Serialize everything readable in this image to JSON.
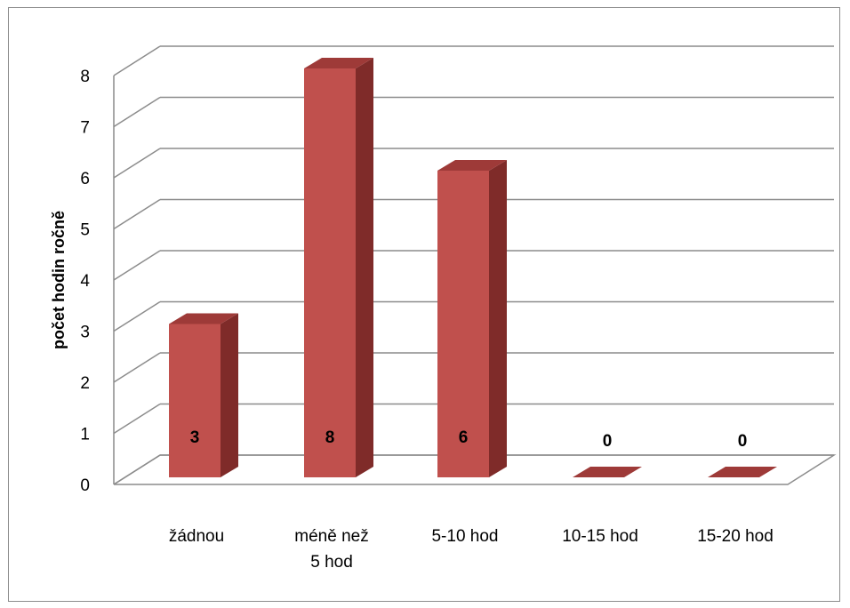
{
  "chart_data": {
    "type": "bar",
    "title": "",
    "xlabel": "",
    "ylabel": "počet hodin ročně",
    "categories": [
      [
        "žádnou"
      ],
      [
        "méně než",
        "5 hod"
      ],
      [
        "5-10 hod"
      ],
      [
        "10-15 hod"
      ],
      [
        "15-20 hod"
      ]
    ],
    "values": [
      3,
      8,
      6,
      0,
      0
    ],
    "data_labels": [
      "3",
      "8",
      "6",
      "0",
      "0"
    ],
    "ylim": [
      0,
      8
    ],
    "yticks": [
      "0",
      "1",
      "2",
      "3",
      "4",
      "5",
      "6",
      "7",
      "8"
    ],
    "grid": true,
    "legend": "none",
    "style": "3d-column",
    "colors": {
      "front": "#c0504d",
      "side": "#7f2b29",
      "top": "#9e3a38",
      "grid": "#8c8c8c"
    }
  }
}
